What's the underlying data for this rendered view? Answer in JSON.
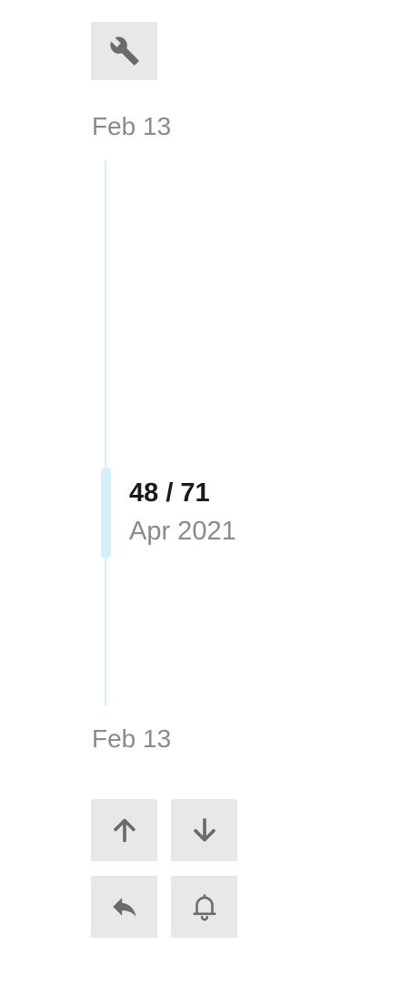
{
  "toolbar": {
    "settings_icon": "wrench-icon"
  },
  "timeline": {
    "start_date": "Feb 13",
    "end_date": "Feb 13",
    "position_label": "48 / 71",
    "position_date": "Apr 2021",
    "current_index": 48,
    "total": 71,
    "track_color": "#d6f0f7",
    "thumb_color": "#d2effc"
  },
  "nav": {
    "up_icon": "arrow-up-icon",
    "down_icon": "arrow-down-icon",
    "reply_icon": "reply-icon",
    "notify_icon": "bell-icon"
  },
  "colors": {
    "button_bg": "#e8e8e8",
    "icon": "#6b6b6b",
    "muted_text": "#8a8a8a"
  }
}
